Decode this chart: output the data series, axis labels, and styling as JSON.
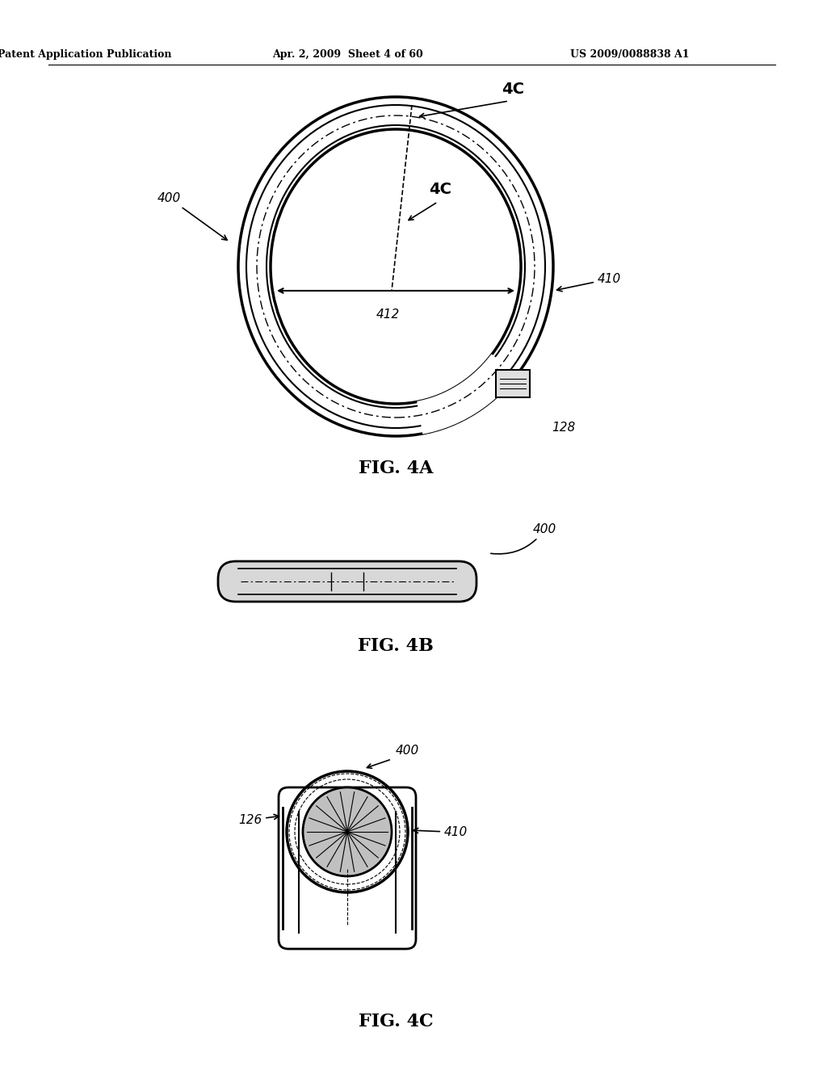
{
  "bg_color": "#ffffff",
  "header_left": "Patent Application Publication",
  "header_mid": "Apr. 2, 2009  Sheet 4 of 60",
  "header_right": "US 2009/0088838 A1",
  "fig4a_label": "FIG. 4A",
  "fig4b_label": "FIG. 4B",
  "fig4c_label": "FIG. 4C",
  "label_400a": "400",
  "label_4C_outer": "4C",
  "label_4C_inner": "4C",
  "label_410": "410",
  "label_412": "412",
  "label_128": "128",
  "label_400b": "400",
  "label_400c": "400",
  "label_126": "126",
  "label_410c": "410"
}
